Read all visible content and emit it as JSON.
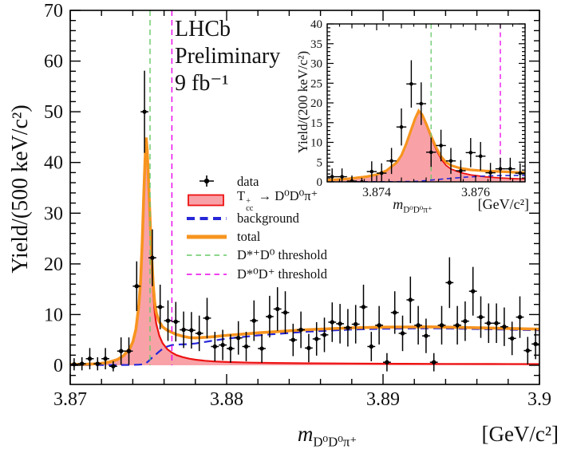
{
  "colors": {
    "signal_fill": "#f8a2a8",
    "signal_line": "#ed1212",
    "background_line": "#2727d8",
    "total_line": "#f7941f",
    "threshold_dstarplus_d0": "#67c967",
    "threshold_dstar0_dplus": "#ea00ea",
    "data_marker": "#000000",
    "frame": "#000000"
  },
  "title": {
    "experiment": "LHCb",
    "status": "Preliminary",
    "luminosity": "9 fb⁻¹"
  },
  "legend": {
    "items": [
      {
        "name": "data",
        "marker": "point",
        "label": "data"
      },
      {
        "name": "signal",
        "marker": "box",
        "pre": "T",
        "sup": "+",
        "sub": "cc",
        "post": " → D⁰D⁰π⁺"
      },
      {
        "name": "background",
        "marker": "dash-bold",
        "label": "background"
      },
      {
        "name": "total",
        "marker": "line-bold",
        "label": "total"
      },
      {
        "name": "threshold-dstarplus-d0",
        "marker": "dash-green",
        "label": "D*⁺D⁰ threshold"
      },
      {
        "name": "threshold-dstar0-dplus",
        "marker": "dash-magenta",
        "label": "D*⁰D⁺ threshold"
      }
    ]
  },
  "chart_data": {
    "main": {
      "type": "scatter+line",
      "ylabel": "Yield/(500 keV/c²)",
      "xlabel_m": "m",
      "xlabel_sub": "D⁰D⁰π⁺",
      "xlabel_units": "[GeV/c²]",
      "x_range": [
        3.87,
        3.9
      ],
      "y_range": [
        -4,
        70
      ],
      "bin_width_gev": 0.0005,
      "x_ticks": {
        "values": [
          3.87,
          3.88,
          3.89,
          3.9
        ],
        "labels": [
          "3.87",
          "3.88",
          "3.89",
          "3.9"
        ],
        "minor_step": 0.002
      },
      "y_ticks": {
        "values": [
          0,
          10,
          20,
          30,
          40,
          50,
          60,
          70
        ],
        "labels": [
          "0",
          "10",
          "20",
          "30",
          "40",
          "50",
          "60",
          "70"
        ],
        "minor_step": 2
      },
      "thresholds": [
        {
          "name": "D*+ D0 threshold",
          "mass": 3.8751
        },
        {
          "name": "D*0 D+ threshold",
          "mass": 3.8765
        }
      ],
      "data": {
        "x": [
          3.87025,
          3.87075,
          3.87125,
          3.87175,
          3.87225,
          3.87275,
          3.87325,
          3.87375,
          3.87425,
          3.87475,
          3.87525,
          3.87575,
          3.87625,
          3.87675,
          3.87725,
          3.87775,
          3.87825,
          3.87875,
          3.87925,
          3.87975,
          3.88025,
          3.88075,
          3.88125,
          3.88175,
          3.88225,
          3.88275,
          3.88325,
          3.88375,
          3.88425,
          3.88475,
          3.88525,
          3.88575,
          3.88625,
          3.88675,
          3.88725,
          3.88775,
          3.88825,
          3.88875,
          3.88925,
          3.88975,
          3.89025,
          3.89075,
          3.89125,
          3.89175,
          3.89225,
          3.89275,
          3.89325,
          3.89375,
          3.89425,
          3.89475,
          3.89525,
          3.89575,
          3.89625,
          3.89675,
          3.89725,
          3.89775,
          3.89825,
          3.89875,
          3.89925,
          3.89975
        ],
        "y": [
          0.2,
          0.3,
          1.3,
          0.3,
          1.3,
          -0.2,
          2.8,
          2.8,
          15.6,
          50,
          21.2,
          11.5,
          8.8,
          8.6,
          7,
          6.9,
          6.3,
          9.3,
          3.7,
          4,
          3.3,
          5.4,
          3.7,
          8.8,
          3.3,
          9.6,
          11.1,
          10.4,
          5,
          7,
          3.4,
          5.2,
          6,
          8.5,
          8.2,
          7.4,
          8.1,
          11.5,
          3.7,
          7.9,
          0.6,
          10.4,
          6.3,
          12.9,
          7.9,
          5.8,
          0.6,
          7.9,
          16.3,
          7.9,
          8.7,
          14.6,
          9.5,
          8.3,
          8.3,
          7.6,
          5.3,
          9.5,
          2.9,
          4.2
        ],
        "yerr": [
          1.2,
          1.3,
          2.1,
          1.3,
          2.1,
          1,
          2.7,
          2.7,
          4.9,
          8.1,
          5.6,
          4.4,
          4,
          3.9,
          3.6,
          3.6,
          3.5,
          4,
          2.9,
          3,
          2.8,
          3.3,
          2.9,
          4,
          2.8,
          4.1,
          4.3,
          4.2,
          3.2,
          3.6,
          2.8,
          3.3,
          3.4,
          3.9,
          3.9,
          3.7,
          3.8,
          4.4,
          2.9,
          3.8,
          1.8,
          4.2,
          3.5,
          4.6,
          3.8,
          3.4,
          1.8,
          3.8,
          5,
          3.8,
          3.9,
          4.8,
          4.1,
          3.9,
          3.9,
          3.8,
          3.3,
          4.1,
          2.7,
          3
        ]
      },
      "curves": {
        "signal": [
          [
            3.87,
            0.1
          ],
          [
            3.871,
            0.15
          ],
          [
            3.8715,
            0.22
          ],
          [
            3.872,
            0.35
          ],
          [
            3.8725,
            0.6
          ],
          [
            3.873,
            1.05
          ],
          [
            3.8734,
            1.8
          ],
          [
            3.8738,
            3.2
          ],
          [
            3.874,
            4.5
          ],
          [
            3.8742,
            7
          ],
          [
            3.8744,
            12
          ],
          [
            3.8745,
            16.5
          ],
          [
            3.8746,
            24
          ],
          [
            3.8747,
            33
          ],
          [
            3.87478,
            40
          ],
          [
            3.87485,
            44.5
          ],
          [
            3.87492,
            42
          ],
          [
            3.875,
            36
          ],
          [
            3.8751,
            28
          ],
          [
            3.8752,
            20.5
          ],
          [
            3.8753,
            14.5
          ],
          [
            3.8754,
            10.5
          ],
          [
            3.8755,
            8.2
          ],
          [
            3.8757,
            5.8
          ],
          [
            3.8759,
            4.4
          ],
          [
            3.8762,
            3.2
          ],
          [
            3.8765,
            2.5
          ],
          [
            3.8768,
            2
          ],
          [
            3.8772,
            1.6
          ],
          [
            3.8776,
            1.3
          ],
          [
            3.878,
            1.1
          ],
          [
            3.8786,
            0.9
          ],
          [
            3.8792,
            0.75
          ],
          [
            3.88,
            0.65
          ],
          [
            3.8815,
            0.52
          ],
          [
            3.883,
            0.45
          ],
          [
            3.885,
            0.4
          ],
          [
            3.888,
            0.34
          ],
          [
            3.891,
            0.3
          ],
          [
            3.894,
            0.27
          ],
          [
            3.897,
            0.25
          ],
          [
            3.9,
            0.23
          ]
        ],
        "background": [
          [
            3.87,
            0.05
          ],
          [
            3.873,
            0.05
          ],
          [
            3.874,
            0.08
          ],
          [
            3.8744,
            0.12
          ],
          [
            3.8746,
            0.18
          ],
          [
            3.8748,
            0.3
          ],
          [
            3.875,
            0.8
          ],
          [
            3.8752,
            1.4
          ],
          [
            3.8755,
            2.2
          ],
          [
            3.8758,
            3
          ],
          [
            3.8762,
            3.7
          ],
          [
            3.8765,
            4
          ],
          [
            3.877,
            4.1
          ],
          [
            3.8775,
            4.15
          ],
          [
            3.878,
            4.3
          ],
          [
            3.879,
            4.8
          ],
          [
            3.88,
            5.25
          ],
          [
            3.882,
            5.9
          ],
          [
            3.885,
            6.6
          ],
          [
            3.888,
            7.05
          ],
          [
            3.89,
            7.2
          ],
          [
            3.893,
            7.3
          ],
          [
            3.896,
            7.15
          ],
          [
            3.9,
            6.9
          ]
        ],
        "total": "signal+background"
      }
    },
    "inset": {
      "type": "scatter+line",
      "ylabel": "Yield/(200 keV/c²)",
      "xlabel_m": "m",
      "xlabel_sub": "D⁰D⁰π⁺",
      "xlabel_units": "[GeV/c²]",
      "x_range": [
        3.873,
        3.877
      ],
      "y_range": [
        0,
        40
      ],
      "bin_width_gev": 0.0002,
      "curve_scale": 0.4,
      "x_ticks": {
        "values": [
          3.874,
          3.876
        ],
        "labels": [
          "3.874",
          "3.876"
        ],
        "minor_step": 0.00025
      },
      "y_ticks": {
        "values": [
          0,
          5,
          10,
          15,
          20,
          25,
          30,
          35,
          40
        ],
        "labels": [
          "0",
          "5",
          "10",
          "15",
          "20",
          "25",
          "30",
          "35",
          "40"
        ],
        "minor_step": 1
      },
      "thresholds": [
        {
          "name": "D*+ D0 threshold",
          "mass": 3.8751
        },
        {
          "name": "D*0 D+ threshold",
          "mass": 3.8765
        }
      ],
      "data": {
        "x": [
          3.8731,
          3.8733,
          3.8735,
          3.8737,
          3.8739,
          3.8741,
          3.8743,
          3.8745,
          3.8747,
          3.8749,
          3.8751,
          3.8753,
          3.8755,
          3.8757,
          3.8759,
          3.8761,
          3.8763,
          3.8765,
          3.8767,
          3.8769
        ],
        "y": [
          1.3,
          1.3,
          0.2,
          0,
          2.6,
          2.2,
          5.3,
          13.9,
          24.8,
          19.8,
          7.5,
          9.2,
          5.3,
          2.8,
          7.4,
          6.5,
          2.3,
          3.3,
          3.3,
          2.2
        ],
        "yerr": [
          2.1,
          2.1,
          1.4,
          1,
          2.6,
          2.5,
          3.3,
          4.7,
          6,
          5.4,
          3.7,
          4,
          3.3,
          2.7,
          3.7,
          3.6,
          2.5,
          2.8,
          2.8,
          2.5
        ]
      }
    }
  }
}
